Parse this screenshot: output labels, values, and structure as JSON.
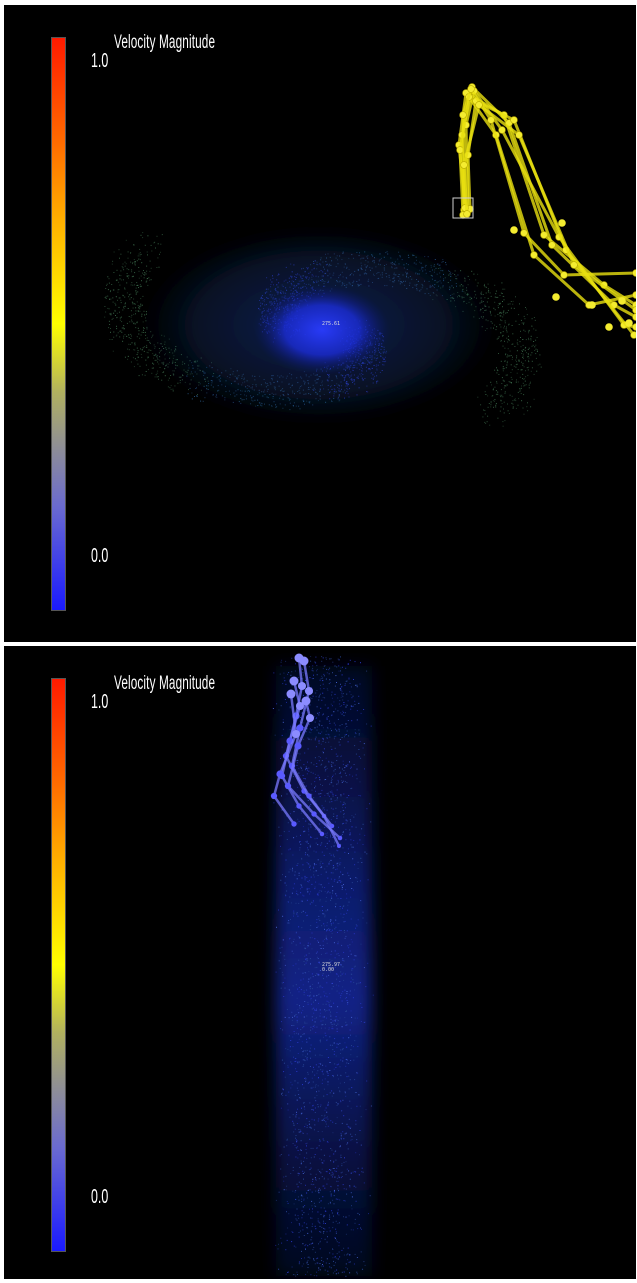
{
  "colors": {
    "background": "#000000",
    "frame": "#ffffff",
    "scale_low": "#1a1aff",
    "scale_mid": "#ffff00",
    "scale_high": "#ff1a00",
    "trajectory_yellow": "#e8e010",
    "trajectory_blue": "#7a7aff"
  },
  "views": [
    {
      "legend": {
        "title": "Velocity Magnitude",
        "max_label": "1.0",
        "min_label": "0.0"
      },
      "probe_label": "275.61"
    },
    {
      "legend": {
        "title": "Velocity Magnitude",
        "max_label": "1.0",
        "min_label": "0.0"
      },
      "probe_label": "275.97",
      "probe_label_2": "0.00"
    }
  ]
}
